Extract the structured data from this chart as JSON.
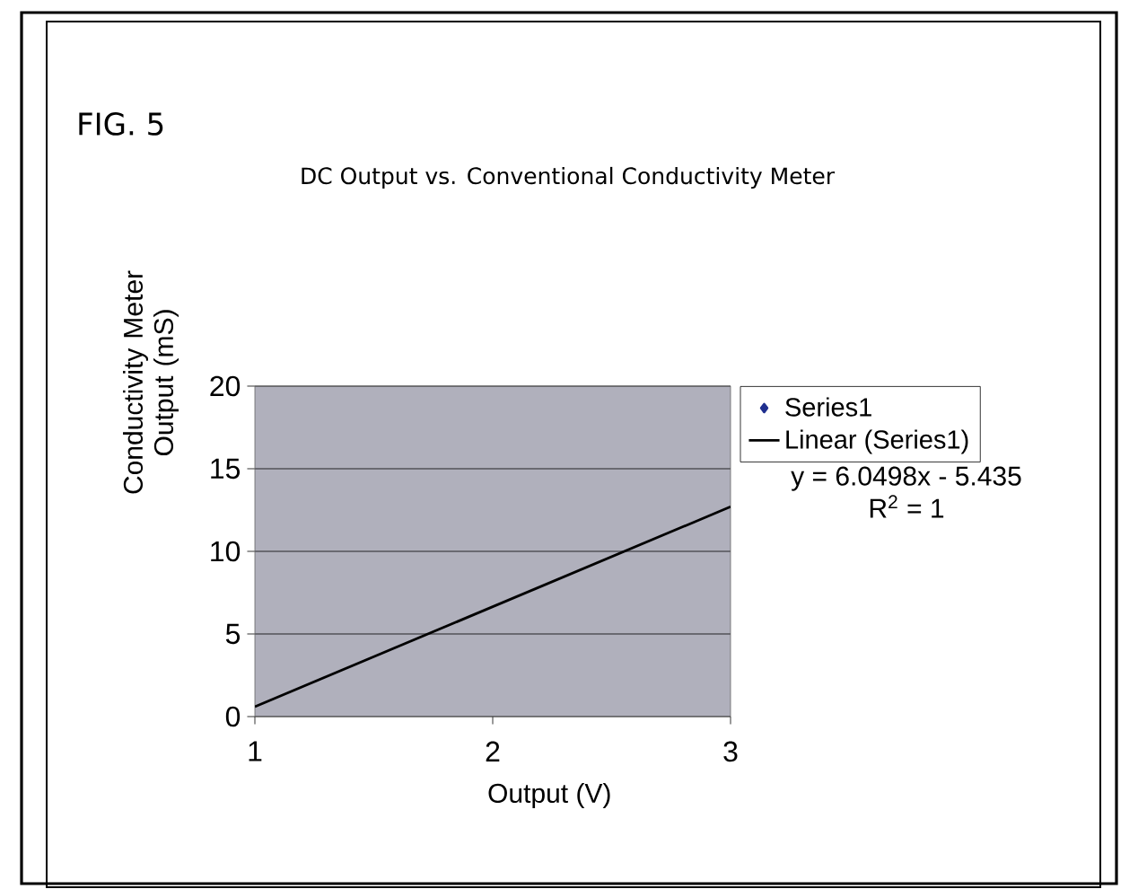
{
  "chart_data": {
    "type": "scatter",
    "title": "DC Output vs. Conventional Conductivity Meter",
    "xlabel": "Output (V)",
    "ylabel": "Conductivity Meter Output (mS)",
    "annotations": [
      "FIG. 5",
      "y = 6.0498x - 5.435",
      "R$^{2}$ = 1"
    ],
    "series": [
      {
        "name": "Series1",
        "marker": "diamond",
        "color": "#1f2f8f"
      },
      {
        "name": "Linear (Series1)",
        "type": "line",
        "marker": "none",
        "color": "#000000",
        "x": [
          1,
          3
        ],
        "values": [
          0.6,
          12.7
        ]
      }
    ],
    "xlim": [
      1,
      3
    ],
    "ylim": [
      0,
      20
    ],
    "xticks": [
      1,
      2,
      3
    ],
    "yticks": [
      0,
      5,
      10,
      15,
      20
    ],
    "grid": "y",
    "legend": "right"
  }
}
